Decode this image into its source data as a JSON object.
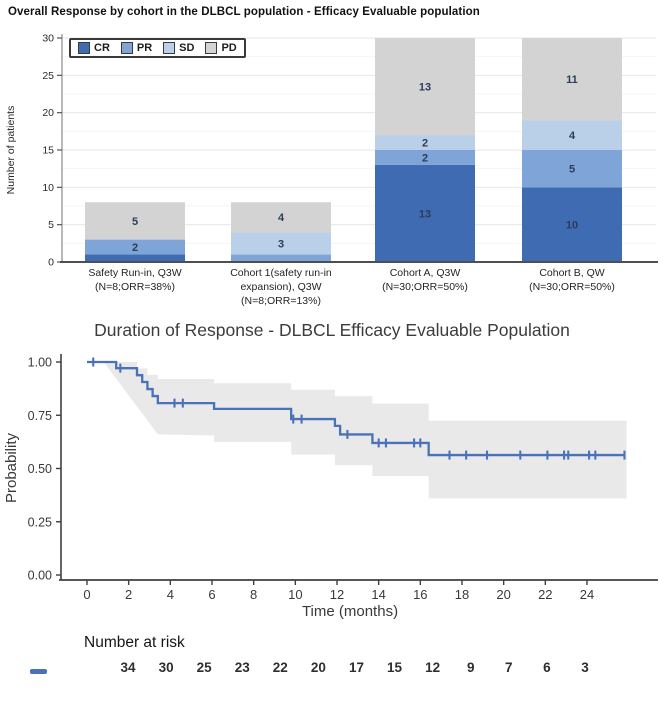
{
  "chart_data": [
    {
      "type": "bar",
      "stacked": true,
      "title": "Overall Response by cohort in the DLBCL population - Efficacy Evaluable population",
      "ylabel": "Number of patients",
      "ylim": [
        0,
        30
      ],
      "yticks": [
        0,
        5,
        10,
        15,
        20,
        25,
        30
      ],
      "categories": [
        "Safety Run-in, Q3W\n(N=8;ORR=38%)",
        "Cohort 1(safety run-in\nexpansion), Q3W\n(N=8;ORR=13%)",
        "Cohort A, Q3W\n(N=30;ORR=50%)",
        "Cohort B, QW\n(N=30;ORR=50%)"
      ],
      "series": [
        {
          "name": "CR",
          "color": "#3e6bb2",
          "values": [
            1,
            0,
            13,
            10
          ]
        },
        {
          "name": "PR",
          "color": "#7ea4d8",
          "values": [
            2,
            1,
            2,
            5
          ]
        },
        {
          "name": "SD",
          "color": "#bad0e9",
          "values": [
            0,
            3,
            2,
            4
          ]
        },
        {
          "name": "PD",
          "color": "#d3d3d3",
          "values": [
            5,
            4,
            13,
            11
          ]
        }
      ],
      "legend_position": "top-left",
      "grid": true,
      "label_color": "#2e3c5a"
    },
    {
      "type": "line",
      "subtype": "kaplan-meier",
      "title": "Duration of Response - DLBCL Efficacy Evaluable Population",
      "xlabel": "Time (months)",
      "ylabel": "Probability",
      "xlim": [
        0,
        26
      ],
      "ylim": [
        0,
        1
      ],
      "xticks": [
        0,
        2,
        4,
        6,
        8,
        10,
        12,
        14,
        16,
        18,
        20,
        22,
        24
      ],
      "ytick_labels": [
        "0.00",
        "0.25",
        "0.50",
        "0.75",
        "1.00"
      ],
      "yticks": [
        0,
        0.25,
        0.5,
        0.75,
        1
      ],
      "line_color": "#4a72b8",
      "band_color": "#e9e9e9",
      "grid": false,
      "steps": [
        [
          0,
          1.0
        ],
        [
          1.4,
          1.0
        ],
        [
          1.4,
          0.971
        ],
        [
          2.4,
          0.971
        ],
        [
          2.4,
          0.938
        ],
        [
          2.65,
          0.938
        ],
        [
          2.65,
          0.906
        ],
        [
          2.9,
          0.906
        ],
        [
          2.9,
          0.873
        ],
        [
          3.15,
          0.873
        ],
        [
          3.15,
          0.84
        ],
        [
          3.4,
          0.84
        ],
        [
          3.4,
          0.807
        ],
        [
          6.1,
          0.807
        ],
        [
          6.1,
          0.78
        ],
        [
          9.8,
          0.78
        ],
        [
          9.8,
          0.732
        ],
        [
          11.9,
          0.732
        ],
        [
          11.9,
          0.7
        ],
        [
          12.15,
          0.7
        ],
        [
          12.15,
          0.66
        ],
        [
          13.7,
          0.66
        ],
        [
          13.7,
          0.62
        ],
        [
          16.4,
          0.62
        ],
        [
          16.4,
          0.563
        ],
        [
          25.8,
          0.563
        ]
      ],
      "censors": [
        [
          0.3,
          1.0
        ],
        [
          1.6,
          0.971
        ],
        [
          4.2,
          0.807
        ],
        [
          4.6,
          0.807
        ],
        [
          9.9,
          0.732
        ],
        [
          10.3,
          0.732
        ],
        [
          12.5,
          0.66
        ],
        [
          14.0,
          0.62
        ],
        [
          14.35,
          0.62
        ],
        [
          15.7,
          0.62
        ],
        [
          16.0,
          0.62
        ],
        [
          17.4,
          0.563
        ],
        [
          18.2,
          0.563
        ],
        [
          19.2,
          0.563
        ],
        [
          20.8,
          0.563
        ],
        [
          22.1,
          0.563
        ],
        [
          22.9,
          0.563
        ],
        [
          23.1,
          0.563
        ],
        [
          24.1,
          0.563
        ],
        [
          24.4,
          0.563
        ],
        [
          25.8,
          0.563
        ]
      ],
      "band": {
        "upper": [
          [
            0.8,
            1.0
          ],
          [
            2.4,
            1.0
          ],
          [
            2.4,
            0.97
          ],
          [
            2.9,
            0.97
          ],
          [
            2.9,
            0.94
          ],
          [
            3.4,
            0.94
          ],
          [
            3.4,
            0.92
          ],
          [
            6.1,
            0.92
          ],
          [
            6.1,
            0.9
          ],
          [
            9.8,
            0.9
          ],
          [
            9.8,
            0.87
          ],
          [
            11.9,
            0.87
          ],
          [
            11.9,
            0.84
          ],
          [
            13.7,
            0.84
          ],
          [
            13.7,
            0.805
          ],
          [
            16.4,
            0.805
          ],
          [
            16.4,
            0.725
          ],
          [
            25.9,
            0.725
          ]
        ],
        "lower": [
          [
            0.8,
            1.0
          ],
          [
            3.4,
            0.66
          ],
          [
            6.1,
            0.655
          ],
          [
            6.1,
            0.625
          ],
          [
            9.8,
            0.625
          ],
          [
            9.8,
            0.565
          ],
          [
            11.9,
            0.565
          ],
          [
            11.9,
            0.515
          ],
          [
            13.7,
            0.515
          ],
          [
            13.7,
            0.465
          ],
          [
            16.4,
            0.465
          ],
          [
            16.4,
            0.36
          ],
          [
            25.9,
            0.36
          ]
        ]
      },
      "number_at_risk": {
        "label": "Number at risk",
        "times": [
          0,
          2,
          4,
          6,
          8,
          10,
          12,
          14,
          16,
          18,
          20,
          22,
          24
        ],
        "values": [
          34,
          30,
          25,
          23,
          22,
          20,
          17,
          15,
          12,
          9,
          7,
          6,
          3
        ]
      }
    }
  ]
}
